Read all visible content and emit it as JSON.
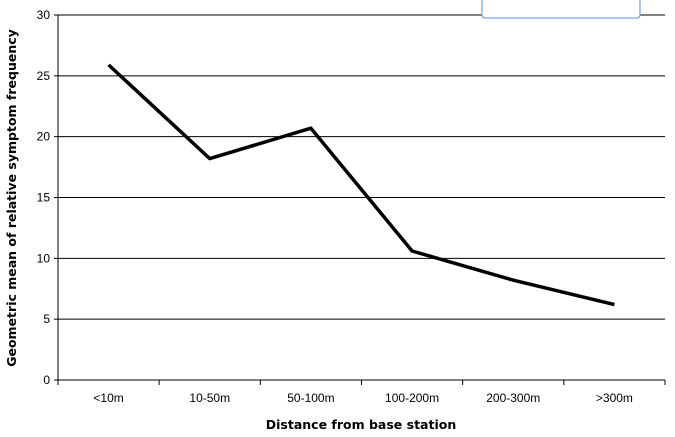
{
  "chart_data": {
    "type": "line",
    "title": "",
    "xlabel": "Distance from base station",
    "ylabel": "Geometric mean of relative symptom frequency",
    "categories": [
      "<10m",
      "10-50m",
      "50-100m",
      "100-200m",
      "200-300m",
      ">300m"
    ],
    "series": [
      {
        "values": [
          25.9,
          18.2,
          20.7,
          10.6,
          8.2,
          6.2
        ]
      }
    ],
    "ylim": [
      0,
      30
    ],
    "yticks": [
      "0",
      "5",
      "10",
      "15",
      "20",
      "25",
      "30"
    ],
    "grid": true,
    "legend": "none"
  },
  "colors": {
    "line": "#000000",
    "grid": "#000000",
    "legend_box_border": "#5b8fd1"
  }
}
